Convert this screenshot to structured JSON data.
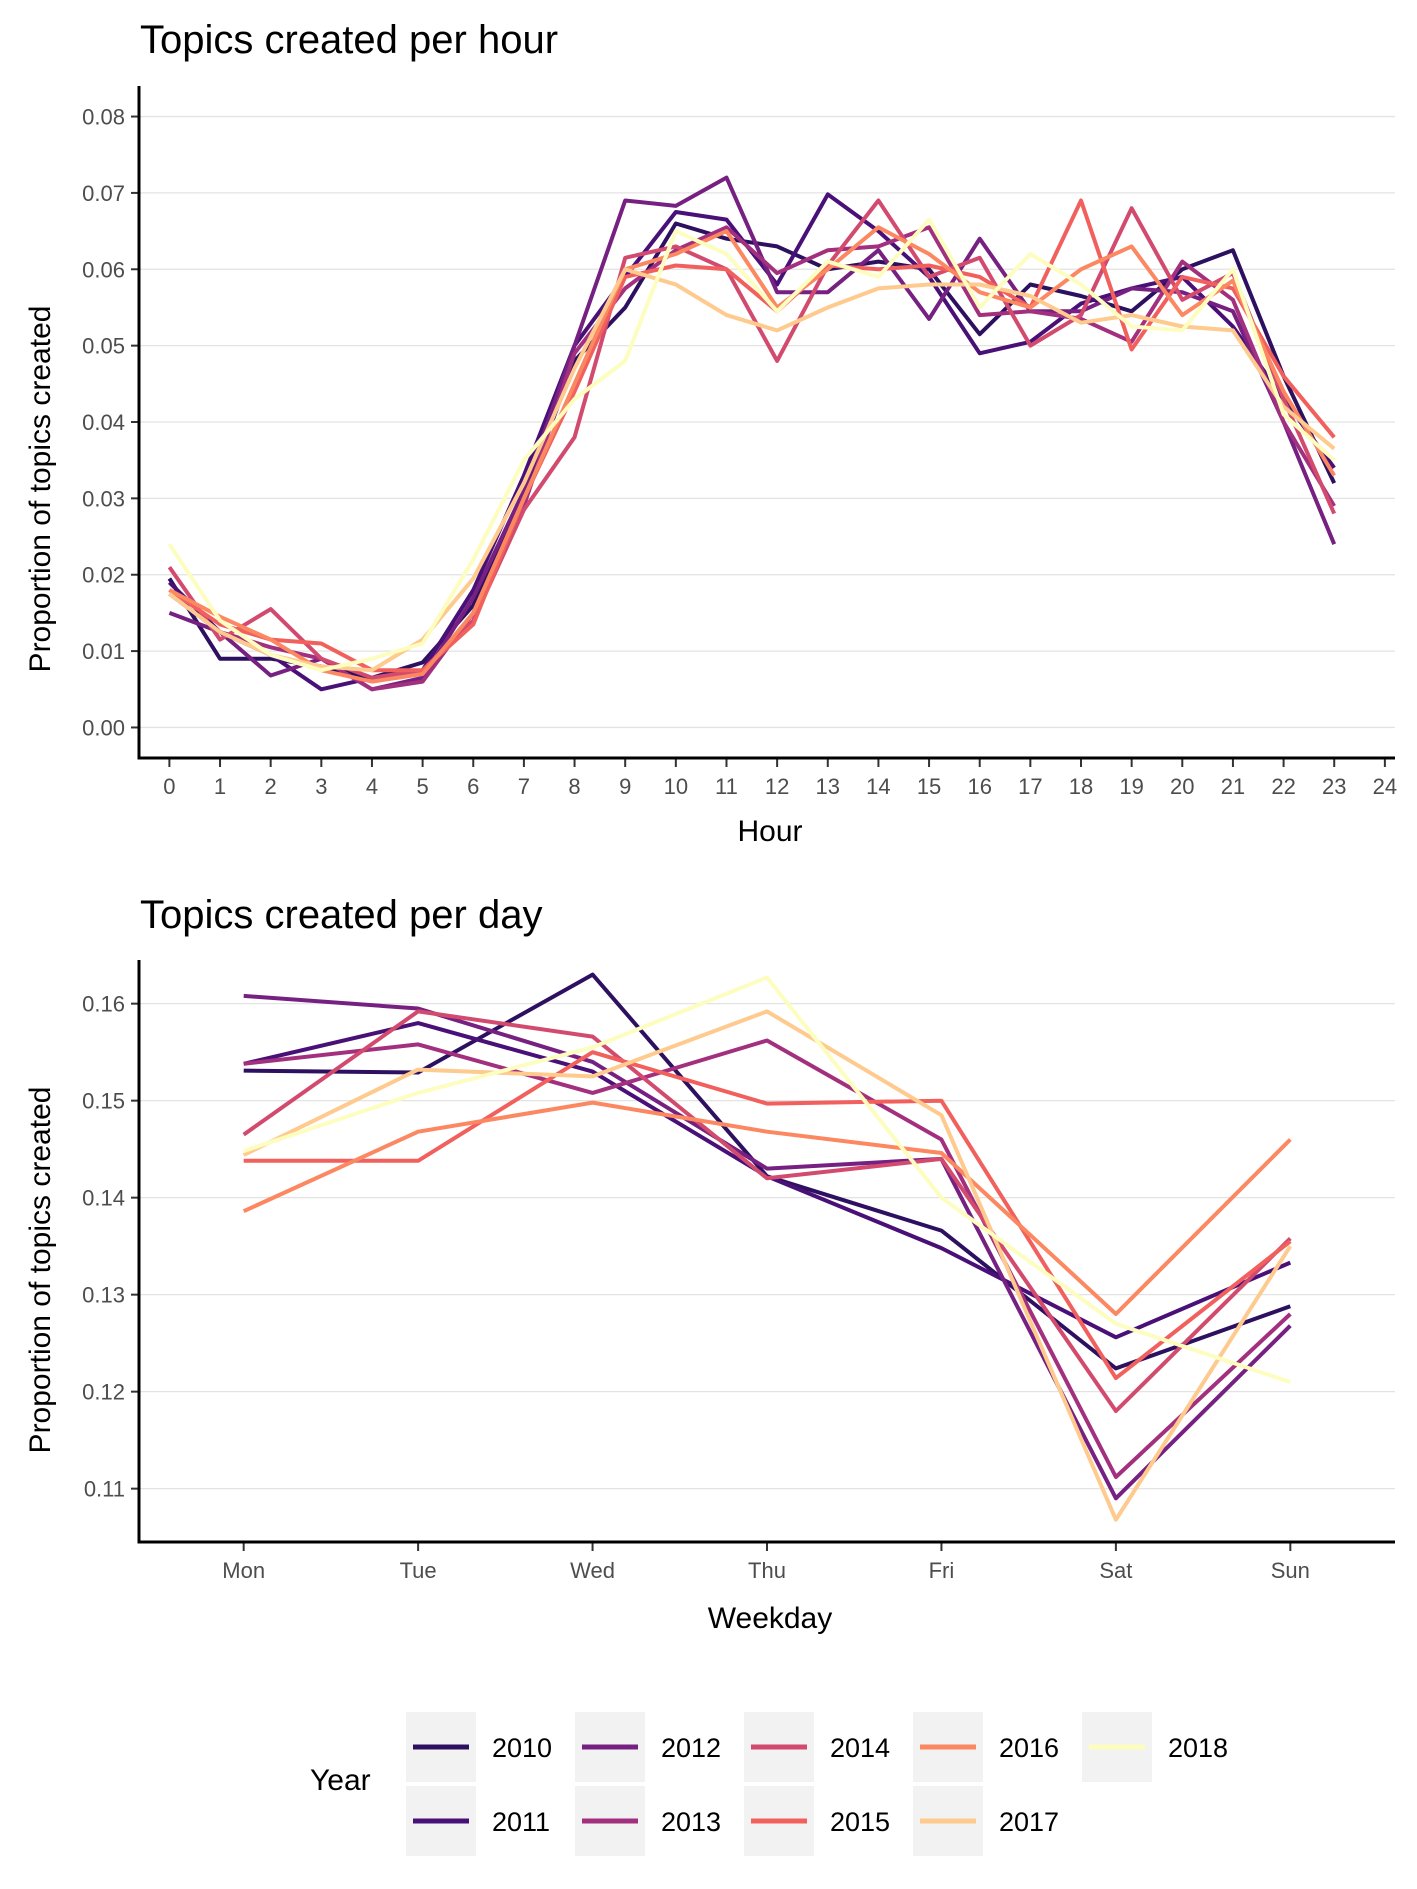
{
  "chart_data": [
    {
      "type": "line",
      "title": "Topics created per hour",
      "xlabel": "Hour",
      "ylabel": "Proportion of topics created",
      "xlim": [
        -0.6,
        24.2
      ],
      "ylim": [
        -0.004,
        0.084
      ],
      "x_ticks": [
        "0",
        "1",
        "2",
        "3",
        "4",
        "5",
        "6",
        "7",
        "8",
        "9",
        "10",
        "11",
        "12",
        "13",
        "14",
        "15",
        "16",
        "17",
        "18",
        "19",
        "20",
        "21",
        "22",
        "23",
        "24"
      ],
      "y_ticks": [
        "0.00",
        "0.01",
        "0.02",
        "0.03",
        "0.04",
        "0.05",
        "0.06",
        "0.07",
        "0.08"
      ],
      "grid": "horizontal",
      "x": [
        0,
        1,
        2,
        3,
        4,
        5,
        6,
        7,
        8,
        9,
        10,
        11,
        12,
        13,
        14,
        15,
        16,
        17,
        18,
        19,
        20,
        21,
        22,
        23
      ],
      "series": [
        {
          "name": "2010",
          "color": "#2d1160",
          "values": [
            0.0195,
            0.009,
            0.009,
            0.008,
            0.0065,
            0.0085,
            0.016,
            0.03,
            0.048,
            0.055,
            0.066,
            0.064,
            0.063,
            0.06,
            0.061,
            0.06,
            0.0515,
            0.058,
            0.0565,
            0.0545,
            0.06,
            0.0625,
            0.046,
            0.032
          ]
        },
        {
          "name": "2011",
          "color": "#491078",
          "values": [
            0.019,
            0.0125,
            0.0095,
            0.005,
            0.0065,
            0.0075,
            0.018,
            0.033,
            0.05,
            0.059,
            0.0675,
            0.0665,
            0.058,
            0.0698,
            0.065,
            0.059,
            0.049,
            0.0505,
            0.0555,
            0.0575,
            0.059,
            0.0525,
            0.043,
            0.034
          ]
        },
        {
          "name": "2012",
          "color": "#762181",
          "values": [
            0.015,
            0.0125,
            0.0068,
            0.009,
            0.005,
            0.0065,
            0.017,
            0.031,
            0.05,
            0.069,
            0.0683,
            0.072,
            0.057,
            0.057,
            0.0625,
            0.0535,
            0.064,
            0.0545,
            0.0545,
            0.0575,
            0.057,
            0.0545,
            0.04,
            0.024
          ]
        },
        {
          "name": "2013",
          "color": "#a3307e",
          "values": [
            0.0175,
            0.0125,
            0.0105,
            0.009,
            0.005,
            0.006,
            0.015,
            0.029,
            0.049,
            0.0575,
            0.0625,
            0.0655,
            0.0595,
            0.0625,
            0.063,
            0.0655,
            0.054,
            0.0545,
            0.0535,
            0.0505,
            0.061,
            0.056,
            0.04,
            0.029
          ]
        },
        {
          "name": "2014",
          "color": "#d24b6f",
          "values": [
            0.021,
            0.0115,
            0.0155,
            0.009,
            0.0065,
            0.0075,
            0.014,
            0.0285,
            0.038,
            0.0615,
            0.063,
            0.06,
            0.048,
            0.0605,
            0.069,
            0.059,
            0.0615,
            0.05,
            0.054,
            0.068,
            0.056,
            0.0595,
            0.043,
            0.028
          ]
        },
        {
          "name": "2015",
          "color": "#f1605d",
          "values": [
            0.018,
            0.0135,
            0.0115,
            0.011,
            0.0075,
            0.0075,
            0.0135,
            0.03,
            0.044,
            0.059,
            0.0605,
            0.06,
            0.0545,
            0.0605,
            0.06,
            0.0605,
            0.059,
            0.055,
            0.069,
            0.0495,
            0.059,
            0.0575,
            0.046,
            0.038
          ]
        },
        {
          "name": "2016",
          "color": "#fb8861",
          "values": [
            0.018,
            0.0145,
            0.0115,
            0.0075,
            0.006,
            0.007,
            0.015,
            0.03,
            0.045,
            0.06,
            0.062,
            0.065,
            0.055,
            0.06,
            0.0655,
            0.062,
            0.057,
            0.055,
            0.06,
            0.063,
            0.054,
            0.0585,
            0.044,
            0.033
          ]
        },
        {
          "name": "2017",
          "color": "#feca8d",
          "values": [
            0.0175,
            0.0125,
            0.0095,
            0.008,
            0.0075,
            0.0115,
            0.0195,
            0.032,
            0.047,
            0.06,
            0.058,
            0.054,
            0.052,
            0.055,
            0.0575,
            0.058,
            0.058,
            0.0565,
            0.053,
            0.054,
            0.0525,
            0.052,
            0.042,
            0.0365
          ]
        },
        {
          "name": "2018",
          "color": "#fcfdbf",
          "values": [
            0.024,
            0.014,
            0.0095,
            0.0075,
            0.009,
            0.011,
            0.022,
            0.035,
            0.043,
            0.048,
            0.065,
            0.062,
            0.0545,
            0.061,
            0.059,
            0.0665,
            0.055,
            0.062,
            0.058,
            0.0525,
            0.052,
            0.06,
            0.041,
            0.035
          ]
        }
      ]
    },
    {
      "type": "line",
      "title": "Topics created per day",
      "xlabel": "Weekday",
      "ylabel": "Proportion of topics created",
      "categories": [
        "Mon",
        "Tue",
        "Wed",
        "Thu",
        "Fri",
        "Sat",
        "Sun"
      ],
      "ylim": [
        0.1045,
        0.1645
      ],
      "y_ticks": [
        "0.11",
        "0.12",
        "0.13",
        "0.14",
        "0.15",
        "0.16"
      ],
      "grid": "horizontal",
      "series": [
        {
          "name": "2010",
          "color": "#2d1160",
          "values": [
            0.1531,
            0.1529,
            0.163,
            0.1422,
            0.1366,
            0.1224,
            0.1288
          ]
        },
        {
          "name": "2011",
          "color": "#491078",
          "values": [
            0.1538,
            0.158,
            0.153,
            0.1422,
            0.1348,
            0.1256,
            0.1333
          ]
        },
        {
          "name": "2012",
          "color": "#762181",
          "values": [
            0.1608,
            0.1595,
            0.154,
            0.143,
            0.144,
            0.109,
            0.1268
          ]
        },
        {
          "name": "2013",
          "color": "#a3307e",
          "values": [
            0.1538,
            0.1558,
            0.1508,
            0.1562,
            0.146,
            0.1112,
            0.128
          ]
        },
        {
          "name": "2014",
          "color": "#d24b6f",
          "values": [
            0.1465,
            0.1592,
            0.1566,
            0.142,
            0.144,
            0.118,
            0.1358
          ]
        },
        {
          "name": "2015",
          "color": "#f1605d",
          "values": [
            0.1438,
            0.1438,
            0.155,
            0.1497,
            0.15,
            0.1214,
            0.1355
          ]
        },
        {
          "name": "2016",
          "color": "#fb8861",
          "values": [
            0.1386,
            0.1468,
            0.1498,
            0.1468,
            0.1446,
            0.128,
            0.146
          ]
        },
        {
          "name": "2017",
          "color": "#feca8d",
          "values": [
            0.1444,
            0.1532,
            0.1525,
            0.1592,
            0.1485,
            0.1068,
            0.135
          ]
        },
        {
          "name": "2018",
          "color": "#fcfdbf",
          "values": [
            0.1448,
            0.1508,
            0.1555,
            0.1627,
            0.14,
            0.127,
            0.121
          ]
        }
      ]
    }
  ],
  "legend": {
    "title": "Year",
    "placement": "bottom"
  }
}
